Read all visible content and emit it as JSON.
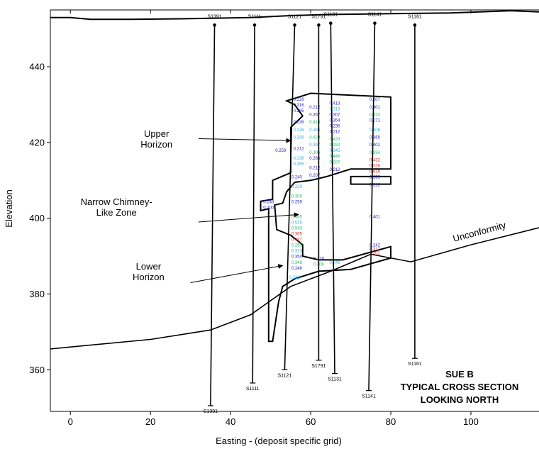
{
  "chart_data": {
    "type": "cross_section",
    "title_lines": [
      "SUE B",
      "TYPICAL CROSS SECTION",
      "LOOKING NORTH"
    ],
    "xlabel": "Easting - (deposit specific grid)",
    "ylabel": "Elevation",
    "xlim": [
      -5,
      117
    ],
    "ylim": [
      349,
      455
    ],
    "x_ticks": [
      0,
      20,
      40,
      60,
      80,
      100
    ],
    "y_ticks": [
      360,
      380,
      400,
      420,
      440
    ],
    "topography": [
      [
        -5,
        453
      ],
      [
        0,
        453
      ],
      [
        5,
        452.5
      ],
      [
        15,
        452.5
      ],
      [
        30,
        452.7
      ],
      [
        45,
        453
      ],
      [
        55,
        453.5
      ],
      [
        65,
        453.8
      ],
      [
        80,
        454
      ],
      [
        95,
        454.2
      ],
      [
        110,
        454.8
      ],
      [
        117,
        454.5
      ]
    ],
    "unconformity": [
      [
        -5,
        365.5
      ],
      [
        20,
        368
      ],
      [
        35,
        370.5
      ],
      [
        45,
        374.5
      ],
      [
        55,
        382
      ],
      [
        65,
        386
      ],
      [
        75,
        390.5
      ],
      [
        85,
        388.5
      ],
      [
        100,
        393
      ],
      [
        117,
        397.5
      ]
    ],
    "unconformity_label": "Unconformity",
    "drillholes": [
      {
        "name": "S1391",
        "top": [
          36,
          451
        ],
        "bottom": [
          35,
          350.5
        ]
      },
      {
        "name": "S1111",
        "top": [
          46,
          451
        ],
        "bottom": [
          45.5,
          356.5
        ]
      },
      {
        "name": "S1121",
        "top": [
          56,
          451
        ],
        "bottom": [
          53.5,
          360
        ]
      },
      {
        "name": "S1791",
        "top": [
          62,
          451
        ],
        "bottom": [
          62,
          362.5
        ]
      },
      {
        "name": "S1131",
        "top": [
          65,
          451.5
        ],
        "bottom": [
          66,
          359
        ]
      },
      {
        "name": "S1141",
        "top": [
          76,
          451.5
        ],
        "bottom": [
          74.5,
          354.5
        ]
      },
      {
        "name": "S1161",
        "top": [
          86,
          451
        ],
        "bottom": [
          86,
          363
        ]
      }
    ],
    "orebody_outline": [
      [
        54,
        431
      ],
      [
        60,
        433
      ],
      [
        80,
        432
      ],
      [
        80,
        413
      ],
      [
        70,
        413
      ],
      [
        64,
        411
      ],
      [
        60,
        410
      ],
      [
        56,
        409.5
      ],
      [
        54,
        407
      ],
      [
        53,
        404
      ],
      [
        51,
        403.5
      ],
      [
        51.5,
        397
      ],
      [
        55,
        395.5
      ],
      [
        58,
        393
      ],
      [
        58,
        390
      ],
      [
        62,
        389
      ],
      [
        68,
        389
      ],
      [
        80,
        392.5
      ],
      [
        80,
        389.5
      ],
      [
        70,
        386.5
      ],
      [
        62,
        386
      ],
      [
        56,
        384
      ],
      [
        53,
        382
      ],
      [
        52,
        378
      ],
      [
        50.5,
        367.5
      ],
      [
        49.5,
        367.5
      ],
      [
        49.5,
        402.5
      ],
      [
        47.5,
        402
      ],
      [
        47.5,
        404.5
      ],
      [
        50.5,
        405
      ],
      [
        50.5,
        410
      ],
      [
        55,
        412
      ],
      [
        55,
        424
      ],
      [
        58,
        427
      ],
      [
        56,
        430
      ],
      [
        54,
        431
      ]
    ],
    "lens_outline": [
      [
        70,
        411
      ],
      [
        80,
        411
      ],
      [
        80,
        409
      ],
      [
        70,
        409
      ],
      [
        70,
        411
      ]
    ],
    "annotations": [
      {
        "lines": [
          "Upper",
          "Horizon"
        ],
        "text_at": [
          21.5,
          421.5
        ],
        "arrow_from": [
          32,
          421
        ],
        "arrow_to": [
          55,
          420.5
        ]
      },
      {
        "lines": [
          "Narrow Chimney-",
          "Like Zone"
        ],
        "text_at": [
          11.5,
          403.5
        ],
        "arrow_from": [
          32,
          399
        ],
        "arrow_to": [
          57,
          401
        ]
      },
      {
        "lines": [
          "Lower",
          "Horizon"
        ],
        "text_at": [
          19.5,
          386.5
        ],
        "arrow_from": [
          30,
          383
        ],
        "arrow_to": [
          53,
          387.5
        ]
      }
    ],
    "assay_labels": [
      {
        "x": 52.5,
        "y": 417.5,
        "v": "0.259",
        "c": "#1f1fd0"
      },
      {
        "x": 57,
        "y": 431,
        "v": "0.226",
        "c": "#1f1fd0"
      },
      {
        "x": 57,
        "y": 429.5,
        "v": "0.316",
        "c": "#1f1fd0"
      },
      {
        "x": 57,
        "y": 428,
        "v": "0.265",
        "c": "#1f1fd0"
      },
      {
        "x": 57,
        "y": 425,
        "v": "0.236",
        "c": "#1f1fd0"
      },
      {
        "x": 57,
        "y": 423,
        "v": "0.226",
        "c": "#2bb3e6"
      },
      {
        "x": 57,
        "y": 421,
        "v": "0.206",
        "c": "#2bb3e6"
      },
      {
        "x": 57,
        "y": 418,
        "v": "0.212",
        "c": "#1f1fd0"
      },
      {
        "x": 57,
        "y": 415.5,
        "v": "0.236",
        "c": "#2bb3e6"
      },
      {
        "x": 57,
        "y": 414,
        "v": "0.265",
        "c": "#2bb3e6"
      },
      {
        "x": 56.5,
        "y": 410.5,
        "v": "0.240",
        "c": "#1f1fd0"
      },
      {
        "x": 56.5,
        "y": 408,
        "v": "0.229",
        "c": "#2bb3e6"
      },
      {
        "x": 56.5,
        "y": 405.5,
        "v": "0.306",
        "c": "#22c46a"
      },
      {
        "x": 56.5,
        "y": 404,
        "v": "0.259",
        "c": "#1f1fd0"
      },
      {
        "x": 49.5,
        "y": 404,
        "v": "0.248",
        "c": "#1f1fd0"
      },
      {
        "x": 49.5,
        "y": 402.5,
        "v": "0.200",
        "c": "#1f1fd0"
      },
      {
        "x": 56.5,
        "y": 400,
        "v": "0.485",
        "c": "#22c46a"
      },
      {
        "x": 56.5,
        "y": 398.5,
        "v": "0.516",
        "c": "#2bb3e6"
      },
      {
        "x": 56.5,
        "y": 397,
        "v": "0.543",
        "c": "#22c46a"
      },
      {
        "x": 56.5,
        "y": 395.5,
        "v": "0.305",
        "c": "#d03030"
      },
      {
        "x": 56.5,
        "y": 394,
        "v": "0.487",
        "c": "#d03030"
      },
      {
        "x": 56.5,
        "y": 392.5,
        "v": "0.265",
        "c": "#22c46a"
      },
      {
        "x": 56.5,
        "y": 391,
        "v": "0.323",
        "c": "#2bb3e6"
      },
      {
        "x": 56.5,
        "y": 389.5,
        "v": "0.354",
        "c": "#1f1fd0"
      },
      {
        "x": 56.5,
        "y": 388,
        "v": "0.346",
        "c": "#22c46a"
      },
      {
        "x": 56.5,
        "y": 386.5,
        "v": "0.248",
        "c": "#1f1fd0"
      },
      {
        "x": 56,
        "y": 384,
        "v": "0.218",
        "c": "#2bb3e6"
      },
      {
        "x": 61,
        "y": 429,
        "v": "0.212",
        "c": "#1f1fd0"
      },
      {
        "x": 61,
        "y": 427,
        "v": "0.357",
        "c": "#1f1fd0"
      },
      {
        "x": 61,
        "y": 425,
        "v": "0.410",
        "c": "#22c46a"
      },
      {
        "x": 61,
        "y": 423,
        "v": "0.386",
        "c": "#2bb3e6"
      },
      {
        "x": 61,
        "y": 421,
        "v": "0.429",
        "c": "#22c46a"
      },
      {
        "x": 61,
        "y": 419,
        "v": "0.397",
        "c": "#2bb3e6"
      },
      {
        "x": 61,
        "y": 417,
        "v": "0.306",
        "c": "#22c46a"
      },
      {
        "x": 61,
        "y": 415.5,
        "v": "0.285",
        "c": "#1f1fd0"
      },
      {
        "x": 61,
        "y": 413,
        "v": "0.212",
        "c": "#1f1fd0"
      },
      {
        "x": 61,
        "y": 411,
        "v": "0.207",
        "c": "#1f1fd0"
      },
      {
        "x": 66,
        "y": 430,
        "v": "0.413",
        "c": "#1f1fd0"
      },
      {
        "x": 66,
        "y": 428.5,
        "v": "0.313",
        "c": "#2bb3e6"
      },
      {
        "x": 66,
        "y": 427,
        "v": "0.307",
        "c": "#1f1fd0"
      },
      {
        "x": 66,
        "y": 425.5,
        "v": "0.354",
        "c": "#1f1fd0"
      },
      {
        "x": 66,
        "y": 424,
        "v": "0.236",
        "c": "#1f1fd0"
      },
      {
        "x": 66,
        "y": 422.5,
        "v": "0.212",
        "c": "#1f1fd0"
      },
      {
        "x": 66,
        "y": 420.5,
        "v": "0.429",
        "c": "#22c46a"
      },
      {
        "x": 66,
        "y": 419,
        "v": "0.333",
        "c": "#22c46a"
      },
      {
        "x": 66,
        "y": 417.5,
        "v": "0.345",
        "c": "#2bb3e6"
      },
      {
        "x": 66,
        "y": 416,
        "v": "0.448",
        "c": "#22c46a"
      },
      {
        "x": 66,
        "y": 414.5,
        "v": "0.207",
        "c": "#22c46a"
      },
      {
        "x": 66,
        "y": 412.5,
        "v": "0.212",
        "c": "#1f1fd0"
      },
      {
        "x": 62,
        "y": 389,
        "v": "0.218",
        "c": "#1f1fd0"
      },
      {
        "x": 62,
        "y": 387.5,
        "v": "0.306",
        "c": "#22c46a"
      },
      {
        "x": 66,
        "y": 388,
        "v": "0.248",
        "c": "#2bb3e6"
      },
      {
        "x": 76,
        "y": 431,
        "v": "0.207",
        "c": "#1f1fd0"
      },
      {
        "x": 76,
        "y": 429,
        "v": "0.401",
        "c": "#1f1fd0"
      },
      {
        "x": 76,
        "y": 427,
        "v": "0.333",
        "c": "#22c46a"
      },
      {
        "x": 76,
        "y": 425.5,
        "v": "0.271",
        "c": "#1f1fd0"
      },
      {
        "x": 76,
        "y": 423,
        "v": "0.306",
        "c": "#2bb3e6"
      },
      {
        "x": 76,
        "y": 421,
        "v": "0.365",
        "c": "#1f1fd0"
      },
      {
        "x": 76,
        "y": 419,
        "v": "0.401",
        "c": "#1f1fd0"
      },
      {
        "x": 76,
        "y": 417,
        "v": "0.354",
        "c": "#22c46a"
      },
      {
        "x": 76,
        "y": 415,
        "v": "0.432",
        "c": "#d03030"
      },
      {
        "x": 76,
        "y": 413.5,
        "v": "0.526",
        "c": "#d03030"
      },
      {
        "x": 76,
        "y": 412,
        "v": "0.616",
        "c": "#d03030"
      },
      {
        "x": 76,
        "y": 410.5,
        "v": "0.255",
        "c": "#1f1fd0"
      },
      {
        "x": 76,
        "y": 408.5,
        "v": "0.212",
        "c": "#1f1fd0"
      },
      {
        "x": 76,
        "y": 400,
        "v": "0.401",
        "c": "#1f1fd0"
      },
      {
        "x": 76,
        "y": 392.5,
        "v": "0.242",
        "c": "#1f1fd0"
      },
      {
        "x": 76,
        "y": 391.5,
        "v": "0.312",
        "c": "#d03030"
      },
      {
        "x": 76,
        "y": 390.5,
        "v": "0.201",
        "c": "#d03030"
      }
    ]
  }
}
